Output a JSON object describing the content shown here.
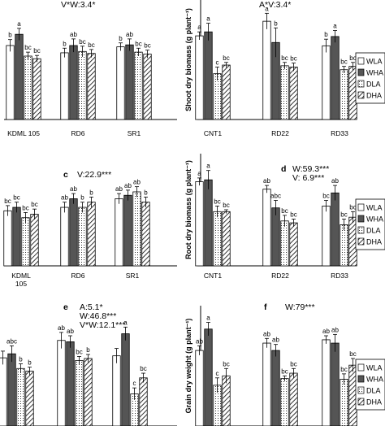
{
  "figure": {
    "legend_labels": [
      "WLA",
      "WHA",
      "DLA",
      "DHA"
    ]
  },
  "chart_data": [
    {
      "panel_id": "a",
      "panel_letter": "",
      "type": "bar",
      "stats": [
        "V*W:3.4*"
      ],
      "ylabel": "",
      "categories": [
        "KDML 105",
        "RD6",
        "SR1"
      ],
      "series": [
        {
          "name": "WLA",
          "values": [
            11.2,
            10.1,
            11.0
          ]
        },
        {
          "name": "WHA",
          "values": [
            12.9,
            11.2,
            11.3
          ]
        },
        {
          "name": "DLA",
          "values": [
            9.6,
            10.3,
            10.2
          ]
        },
        {
          "name": "DHA",
          "values": [
            9.2,
            10.0,
            9.9
          ]
        }
      ],
      "errors": [
        [
          0.9,
          0.7,
          0.6
        ],
        [
          0.9,
          1.0,
          0.9
        ],
        [
          0.6,
          0.8,
          0.6
        ],
        [
          0.5,
          0.6,
          0.6
        ]
      ],
      "letters": [
        [
          "b",
          "b",
          "b"
        ],
        [
          "a",
          "ab",
          "ab"
        ],
        [
          "bc",
          "bc",
          "bc"
        ],
        [
          "bc",
          "bc",
          "bc"
        ]
      ],
      "ylim": [
        0,
        16
      ],
      "legend": false
    },
    {
      "panel_id": "b",
      "panel_letter": "",
      "type": "bar",
      "stats": [
        "A*V:3.4*"
      ],
      "ylabel": "Shoot dry biomass (g plant⁻¹)",
      "categories": [
        "CNT1",
        "RD22",
        "RD33"
      ],
      "series": [
        {
          "name": "WLA",
          "values": [
            12.6,
            14.8,
            11.1
          ]
        },
        {
          "name": "WHA",
          "values": [
            13.2,
            11.6,
            12.5
          ]
        },
        {
          "name": "DLA",
          "values": [
            6.9,
            8.1,
            7.5
          ]
        },
        {
          "name": "DHA",
          "values": [
            8.2,
            7.9,
            8.0
          ]
        }
      ],
      "errors": [
        [
          0.6,
          1.2,
          1.0
        ],
        [
          1.3,
          2.2,
          0.9
        ],
        [
          1.0,
          0.5,
          0.5
        ],
        [
          0.4,
          0.6,
          0.6
        ]
      ],
      "letters": [
        [
          "a",
          "a",
          "b"
        ],
        [
          "a",
          "b",
          "a"
        ],
        [
          "c",
          "bc",
          "bc"
        ],
        [
          "bc",
          "bc",
          "bc"
        ]
      ],
      "ylim": [
        0,
        18
      ],
      "legend": true
    },
    {
      "panel_id": "c",
      "panel_letter": "c",
      "type": "bar",
      "stats": [
        "V:22.9***"
      ],
      "ylabel": "",
      "categories": [
        "KDML\n105",
        "RD6",
        "SR1"
      ],
      "series": [
        {
          "name": "WLA",
          "values": [
            3.2,
            3.4,
            3.9
          ]
        },
        {
          "name": "WHA",
          "values": [
            3.4,
            3.9,
            4.1
          ]
        },
        {
          "name": "DLA",
          "values": [
            2.8,
            3.4,
            4.3
          ]
        },
        {
          "name": "DHA",
          "values": [
            3.0,
            3.7,
            3.7
          ]
        }
      ],
      "errors": [
        [
          0.3,
          0.3,
          0.3
        ],
        [
          0.3,
          0.3,
          0.3
        ],
        [
          0.3,
          0.3,
          0.3
        ],
        [
          0.3,
          0.3,
          0.3
        ]
      ],
      "letters": [
        [
          "bc",
          "ab",
          "ab"
        ],
        [
          "bc",
          "ab",
          "ab"
        ],
        [
          "bc",
          "b",
          "ab"
        ],
        [
          "bc",
          "b",
          "b"
        ]
      ],
      "ylim": [
        0,
        6
      ],
      "legend": false
    },
    {
      "panel_id": "d",
      "panel_letter": "d",
      "type": "bar",
      "stats": [
        "W:59.3***",
        "V: 6.9***"
      ],
      "ylabel": "Root dry biomass (g plant⁻¹)",
      "categories": [
        "CNT1",
        "RD22",
        "RD33"
      ],
      "series": [
        {
          "name": "WLA",
          "values": [
            4.5,
            4.1,
            3.2
          ]
        },
        {
          "name": "WHA",
          "values": [
            4.6,
            3.1,
            3.9
          ]
        },
        {
          "name": "DLA",
          "values": [
            2.9,
            2.4,
            2.2
          ]
        },
        {
          "name": "DHA",
          "values": [
            2.9,
            2.3,
            2.6
          ]
        }
      ],
      "errors": [
        [
          0.2,
          0.2,
          0.3
        ],
        [
          0.5,
          0.4,
          0.4
        ],
        [
          0.3,
          0.3,
          0.3
        ],
        [
          0.1,
          0.2,
          0.3
        ]
      ],
      "letters": [
        [
          "a",
          "ab",
          "bc"
        ],
        [
          "a",
          "abc",
          "ab"
        ],
        [
          "bc",
          "bc",
          "bc"
        ],
        [
          "bc",
          "bc",
          "bc"
        ]
      ],
      "ylim": [
        0,
        6
      ],
      "legend": true
    },
    {
      "panel_id": "e",
      "panel_letter": "e",
      "type": "bar",
      "stats": [
        "A:5.1*",
        "W:46.8***",
        "V*W:12.1***"
      ],
      "ylabel": "",
      "categories": [
        "",
        "",
        ""
      ],
      "series": [
        {
          "name": "WLA",
          "values": [
            10.2,
            12.8,
            10.5
          ]
        },
        {
          "name": "WHA",
          "values": [
            10.8,
            12.6,
            13.8
          ]
        },
        {
          "name": "DLA",
          "values": [
            8.6,
            9.8,
            4.8
          ]
        },
        {
          "name": "DHA",
          "values": [
            8.2,
            10.1,
            7.2
          ]
        }
      ],
      "errors": [
        [
          1.0,
          1.2,
          1.1
        ],
        [
          1.2,
          0.9,
          1.0
        ],
        [
          0.7,
          0.6,
          0.9
        ],
        [
          0.6,
          0.6,
          0.7
        ]
      ],
      "letters": [
        [
          "",
          "ab",
          ""
        ],
        [
          "abc",
          "ab",
          "a"
        ],
        [
          "b",
          "bc",
          "c"
        ],
        [
          "b",
          "b",
          "bc"
        ]
      ],
      "ylim": [
        0,
        18
      ],
      "legend": false
    },
    {
      "panel_id": "f",
      "panel_letter": "f",
      "type": "bar",
      "stats": [
        "W:79***"
      ],
      "ylabel": "Grain dry weight (g plant⁻¹)",
      "categories": [
        "",
        "",
        ""
      ],
      "series": [
        {
          "name": "WLA",
          "values": [
            11.3,
            12.4,
            12.9
          ]
        },
        {
          "name": "WHA",
          "values": [
            14.5,
            11.3,
            12.4
          ]
        },
        {
          "name": "DLA",
          "values": [
            6.1,
            7.1,
            7.0
          ]
        },
        {
          "name": "DHA",
          "values": [
            7.5,
            7.9,
            9.1
          ]
        }
      ],
      "errors": [
        [
          0.7,
          0.7,
          0.6
        ],
        [
          1.0,
          0.9,
          1.3
        ],
        [
          1.1,
          0.4,
          0.8
        ],
        [
          1.1,
          0.7,
          1.0
        ]
      ],
      "letters": [
        [
          "ab",
          "ab",
          "ab"
        ],
        [
          "a",
          "ab",
          "ab"
        ],
        [
          "c",
          "bc",
          "bc"
        ],
        [
          "bc",
          "bc",
          "bc"
        ]
      ],
      "ylim": [
        0,
        18
      ],
      "legend": true
    }
  ]
}
